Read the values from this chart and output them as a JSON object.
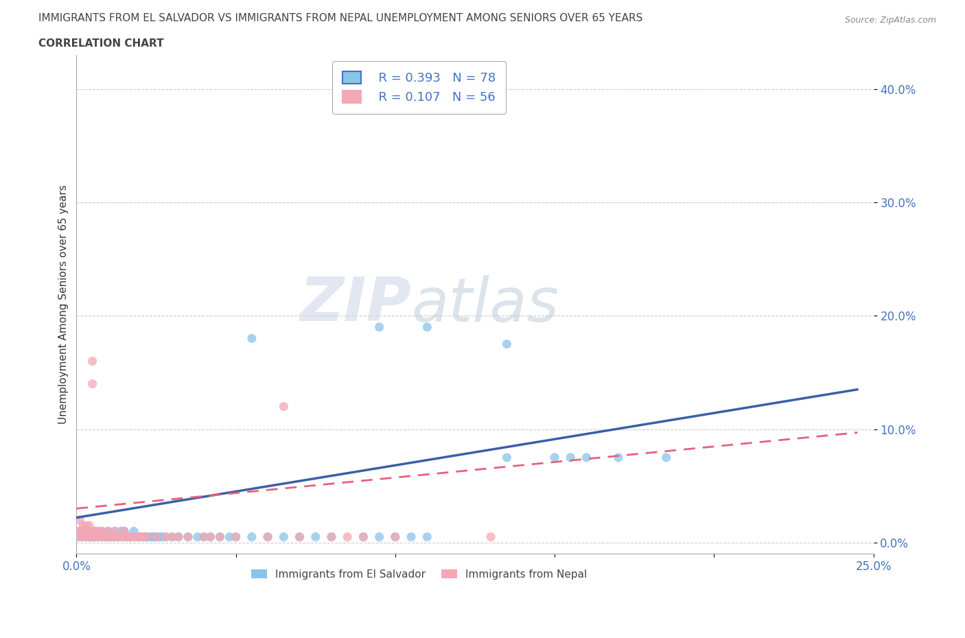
{
  "title_line1": "IMMIGRANTS FROM EL SALVADOR VS IMMIGRANTS FROM NEPAL UNEMPLOYMENT AMONG SENIORS OVER 65 YEARS",
  "title_line2": "CORRELATION CHART",
  "source_text": "Source: ZipAtlas.com",
  "ylabel": "Unemployment Among Seniors over 65 years",
  "xlim": [
    0.0,
    0.25
  ],
  "ylim": [
    -0.01,
    0.43
  ],
  "x_ticks": [
    0.0,
    0.05,
    0.1,
    0.15,
    0.2,
    0.25
  ],
  "x_tick_labels": [
    "0.0%",
    "",
    "",
    "",
    "",
    "25.0%"
  ],
  "y_ticks": [
    0.0,
    0.1,
    0.2,
    0.3,
    0.4
  ],
  "y_tick_labels_right": [
    "0.0%",
    "10.0%",
    "20.0%",
    "30.0%",
    "40.0%"
  ],
  "el_salvador_color": "#89c4ea",
  "nepal_color": "#f4a7b5",
  "el_salvador_line_color": "#3a5fa8",
  "nepal_line_color": "#e8607a",
  "watermark_zip": "ZIP",
  "watermark_atlas": "atlas",
  "legend_R_el_salvador": "R = 0.393",
  "legend_N_el_salvador": "N = 78",
  "legend_R_nepal": "R = 0.107",
  "legend_N_nepal": "N = 56",
  "el_salvador_regression": [
    0.0,
    0.25,
    0.025,
    0.135
  ],
  "nepal_regression": [
    0.0,
    0.13,
    0.03,
    0.095
  ],
  "el_salvador_data": [
    [
      0.001,
      0.005
    ],
    [
      0.001,
      0.01
    ],
    [
      0.002,
      0.005
    ],
    [
      0.002,
      0.005
    ],
    [
      0.003,
      0.005
    ],
    [
      0.003,
      0.01
    ],
    [
      0.004,
      0.005
    ],
    [
      0.004,
      0.005
    ],
    [
      0.005,
      0.005
    ],
    [
      0.005,
      0.005
    ],
    [
      0.006,
      0.005
    ],
    [
      0.006,
      0.01
    ],
    [
      0.007,
      0.005
    ],
    [
      0.007,
      0.005
    ],
    [
      0.008,
      0.005
    ],
    [
      0.008,
      0.01
    ],
    [
      0.009,
      0.005
    ],
    [
      0.009,
      0.005
    ],
    [
      0.01,
      0.005
    ],
    [
      0.01,
      0.01
    ],
    [
      0.011,
      0.005
    ],
    [
      0.011,
      0.005
    ],
    [
      0.012,
      0.005
    ],
    [
      0.012,
      0.01
    ],
    [
      0.013,
      0.005
    ],
    [
      0.013,
      0.005
    ],
    [
      0.014,
      0.005
    ],
    [
      0.014,
      0.01
    ],
    [
      0.015,
      0.005
    ],
    [
      0.015,
      0.01
    ],
    [
      0.016,
      0.005
    ],
    [
      0.016,
      0.005
    ],
    [
      0.017,
      0.005
    ],
    [
      0.018,
      0.005
    ],
    [
      0.018,
      0.01
    ],
    [
      0.019,
      0.005
    ],
    [
      0.02,
      0.005
    ],
    [
      0.02,
      0.005
    ],
    [
      0.021,
      0.005
    ],
    [
      0.022,
      0.005
    ],
    [
      0.022,
      0.005
    ],
    [
      0.023,
      0.005
    ],
    [
      0.024,
      0.005
    ],
    [
      0.024,
      0.005
    ],
    [
      0.025,
      0.005
    ],
    [
      0.026,
      0.005
    ],
    [
      0.027,
      0.005
    ],
    [
      0.028,
      0.005
    ],
    [
      0.03,
      0.005
    ],
    [
      0.032,
      0.005
    ],
    [
      0.035,
      0.005
    ],
    [
      0.038,
      0.005
    ],
    [
      0.04,
      0.005
    ],
    [
      0.042,
      0.005
    ],
    [
      0.045,
      0.005
    ],
    [
      0.048,
      0.005
    ],
    [
      0.05,
      0.005
    ],
    [
      0.055,
      0.005
    ],
    [
      0.06,
      0.005
    ],
    [
      0.065,
      0.005
    ],
    [
      0.07,
      0.005
    ],
    [
      0.075,
      0.005
    ],
    [
      0.08,
      0.005
    ],
    [
      0.09,
      0.005
    ],
    [
      0.095,
      0.005
    ],
    [
      0.1,
      0.005
    ],
    [
      0.105,
      0.005
    ],
    [
      0.11,
      0.005
    ],
    [
      0.055,
      0.18
    ],
    [
      0.095,
      0.19
    ],
    [
      0.11,
      0.19
    ],
    [
      0.135,
      0.175
    ],
    [
      0.135,
      0.075
    ],
    [
      0.15,
      0.075
    ],
    [
      0.155,
      0.075
    ],
    [
      0.16,
      0.075
    ],
    [
      0.17,
      0.075
    ],
    [
      0.185,
      0.075
    ]
  ],
  "nepal_data": [
    [
      0.001,
      0.005
    ],
    [
      0.001,
      0.01
    ],
    [
      0.001,
      0.02
    ],
    [
      0.002,
      0.005
    ],
    [
      0.002,
      0.01
    ],
    [
      0.002,
      0.015
    ],
    [
      0.003,
      0.005
    ],
    [
      0.003,
      0.01
    ],
    [
      0.003,
      0.015
    ],
    [
      0.004,
      0.005
    ],
    [
      0.004,
      0.01
    ],
    [
      0.004,
      0.015
    ],
    [
      0.005,
      0.005
    ],
    [
      0.005,
      0.01
    ],
    [
      0.005,
      0.14
    ],
    [
      0.005,
      0.16
    ],
    [
      0.006,
      0.005
    ],
    [
      0.006,
      0.01
    ],
    [
      0.007,
      0.005
    ],
    [
      0.007,
      0.01
    ],
    [
      0.008,
      0.005
    ],
    [
      0.008,
      0.01
    ],
    [
      0.009,
      0.005
    ],
    [
      0.01,
      0.005
    ],
    [
      0.01,
      0.01
    ],
    [
      0.011,
      0.005
    ],
    [
      0.012,
      0.005
    ],
    [
      0.012,
      0.01
    ],
    [
      0.013,
      0.005
    ],
    [
      0.014,
      0.005
    ],
    [
      0.015,
      0.005
    ],
    [
      0.015,
      0.01
    ],
    [
      0.016,
      0.005
    ],
    [
      0.017,
      0.005
    ],
    [
      0.018,
      0.005
    ],
    [
      0.019,
      0.005
    ],
    [
      0.02,
      0.005
    ],
    [
      0.021,
      0.005
    ],
    [
      0.022,
      0.005
    ],
    [
      0.025,
      0.005
    ],
    [
      0.028,
      0.005
    ],
    [
      0.03,
      0.005
    ],
    [
      0.032,
      0.005
    ],
    [
      0.035,
      0.005
    ],
    [
      0.04,
      0.005
    ],
    [
      0.042,
      0.005
    ],
    [
      0.045,
      0.005
    ],
    [
      0.05,
      0.005
    ],
    [
      0.06,
      0.005
    ],
    [
      0.065,
      0.12
    ],
    [
      0.07,
      0.005
    ],
    [
      0.08,
      0.005
    ],
    [
      0.085,
      0.005
    ],
    [
      0.09,
      0.005
    ],
    [
      0.1,
      0.005
    ],
    [
      0.13,
      0.005
    ]
  ]
}
